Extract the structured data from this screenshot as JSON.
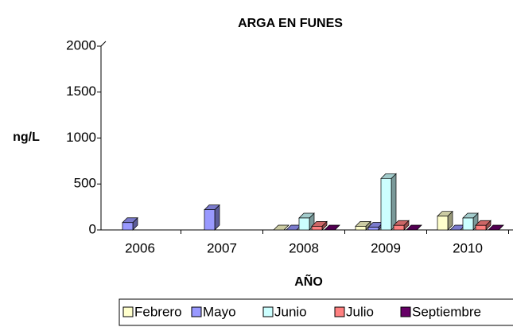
{
  "chart_data": {
    "type": "bar3d",
    "title": "ARGA EN FUNES",
    "y_label": "ng/L",
    "x_label": "AÑO",
    "categories": [
      "2006",
      "2007",
      "2008",
      "2009",
      "2010"
    ],
    "series": [
      {
        "name": "Febrero",
        "color": "#ffffcc",
        "values": [
          null,
          null,
          0,
          40,
          150
        ]
      },
      {
        "name": "Mayo",
        "color": "#9999ff",
        "values": [
          80,
          220,
          0,
          30,
          0
        ]
      },
      {
        "name": "Junio",
        "color": "#ccffff",
        "values": [
          null,
          null,
          130,
          560,
          130
        ]
      },
      {
        "name": "Julio",
        "color": "#ff8080",
        "values": [
          null,
          null,
          40,
          50,
          50
        ]
      },
      {
        "name": "Septiembre",
        "color": "#660066",
        "values": [
          null,
          null,
          0,
          0,
          0
        ]
      }
    ],
    "ylim": [
      0,
      2000
    ],
    "yticks": [
      0,
      500,
      1000,
      1500,
      2000
    ]
  }
}
